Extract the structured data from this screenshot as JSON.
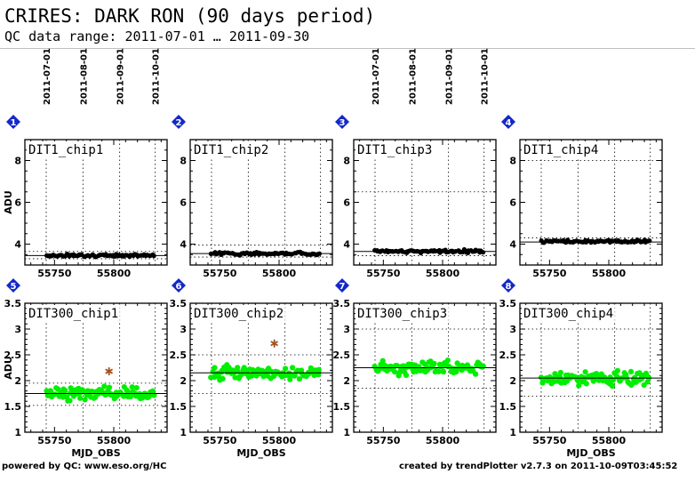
{
  "header": {
    "title": "CRIRES: DARK RON (90 days period)",
    "subtitle": "QC data range: 2011-07-01 … 2011-09-30"
  },
  "footer": {
    "left": "powered by QC: www.eso.org/HC",
    "right": "created by trendPlotter v2.7.3 on 2011-10-09T03:45:52"
  },
  "colors": {
    "badge": "#1428c8",
    "row1_points": "#000000",
    "row2_points": "#00ee00",
    "outlier": "#a0501e"
  },
  "chart_data": [
    {
      "type": "scatter",
      "panel": "1",
      "title": "DIT1_chip1",
      "ylabel": "ADU",
      "xlabel": "",
      "xlim": [
        55725,
        55845
      ],
      "ylim": [
        3.0,
        9.0
      ],
      "yticks": [
        4,
        6,
        8
      ],
      "yticklabels": [
        "4",
        "6",
        "8"
      ],
      "xticks": [
        55750,
        55800
      ],
      "xticklabels": [
        "55750",
        "55800"
      ],
      "date_ticks": [
        "2011-07-01",
        "2011-08-01",
        "2011-09-01",
        "2011-10-01"
      ],
      "date_tick_mjd": [
        55743,
        55774,
        55805,
        55835
      ],
      "x_range": [
        55743,
        55834
      ],
      "y_center": 3.46,
      "y_spread": 0.05,
      "ref_lines": [
        3.45
      ],
      "dotted_lines": [
        3.65,
        3.3
      ],
      "outliers": []
    },
    {
      "type": "scatter",
      "panel": "2",
      "title": "DIT1_chip2",
      "ylabel": "",
      "xlabel": "",
      "xlim": [
        55725,
        55845
      ],
      "ylim": [
        3.0,
        9.0
      ],
      "yticks": [
        4,
        6,
        8
      ],
      "yticklabels": [
        "4",
        "6",
        "8"
      ],
      "xticks": [
        55750,
        55800
      ],
      "xticklabels": [
        "55750",
        "55800"
      ],
      "date_ticks": [],
      "date_tick_mjd": [],
      "x_range": [
        55743,
        55834
      ],
      "y_center": 3.55,
      "y_spread": 0.05,
      "ref_lines": [
        3.55
      ],
      "dotted_lines": [
        3.95,
        3.38
      ],
      "outliers": []
    },
    {
      "type": "scatter",
      "panel": "3",
      "title": "DIT1_chip3",
      "ylabel": "",
      "xlabel": "",
      "xlim": [
        55725,
        55845
      ],
      "ylim": [
        3.0,
        9.0
      ],
      "yticks": [
        4,
        6,
        8
      ],
      "yticklabels": [
        "4",
        "6",
        "8"
      ],
      "xticks": [
        55750,
        55800
      ],
      "xticklabels": [
        "55750",
        "55800"
      ],
      "date_ticks": [
        "2011-07-01",
        "2011-08-01",
        "2011-09-01",
        "2011-10-01"
      ],
      "date_tick_mjd": [
        55743,
        55774,
        55805,
        55835
      ],
      "x_range": [
        55743,
        55834
      ],
      "y_center": 3.66,
      "y_spread": 0.05,
      "ref_lines": [
        3.65
      ],
      "dotted_lines": [
        6.5,
        3.45
      ],
      "outliers": []
    },
    {
      "type": "scatter",
      "panel": "4",
      "title": "DIT1_chip4",
      "ylabel": "",
      "xlabel": "",
      "xlim": [
        55725,
        55845
      ],
      "ylim": [
        3.0,
        9.0
      ],
      "yticks": [
        4,
        6,
        8
      ],
      "yticklabels": [
        "4",
        "6",
        "8"
      ],
      "xticks": [
        55750,
        55800
      ],
      "xticklabels": [
        "55750",
        "55800"
      ],
      "date_ticks": [],
      "date_tick_mjd": [],
      "x_range": [
        55743,
        55834
      ],
      "y_center": 4.13,
      "y_spread": 0.05,
      "ref_lines": [
        4.1
      ],
      "dotted_lines": [
        8.0,
        4.3
      ],
      "outliers": []
    },
    {
      "type": "scatter",
      "panel": "5",
      "title": "DIT300_chip1",
      "ylabel": "ADU",
      "xlabel": "MJD_OBS",
      "xlim": [
        55725,
        55845
      ],
      "ylim": [
        1.0,
        3.5
      ],
      "yticks": [
        1,
        1.5,
        2,
        2.5,
        3,
        3.5
      ],
      "yticklabels": [
        "1",
        "1.5",
        "2",
        "2.5",
        "3",
        "3.5"
      ],
      "xticks": [
        55750,
        55800
      ],
      "xticklabels": [
        "55750",
        "55800"
      ],
      "date_ticks": [],
      "date_tick_mjd": [],
      "x_range": [
        55743,
        55834
      ],
      "y_center": 1.75,
      "y_spread": 0.09,
      "ref_lines": [
        1.75
      ],
      "dotted_lines": [
        1.95,
        1.52
      ],
      "outliers": [
        [
          55796,
          2.18
        ]
      ]
    },
    {
      "type": "scatter",
      "panel": "6",
      "title": "DIT300_chip2",
      "ylabel": "",
      "xlabel": "MJD_OBS",
      "xlim": [
        55725,
        55845
      ],
      "ylim": [
        1.0,
        3.5
      ],
      "yticks": [
        1,
        1.5,
        2,
        2.5,
        3,
        3.5
      ],
      "yticklabels": [
        "1",
        "1.5",
        "2",
        "2.5",
        "3",
        "3.5"
      ],
      "xticks": [
        55750,
        55800
      ],
      "xticklabels": [
        "55750",
        "55800"
      ],
      "date_ticks": [],
      "date_tick_mjd": [],
      "x_range": [
        55743,
        55834
      ],
      "y_center": 2.15,
      "y_spread": 0.1,
      "ref_lines": [
        2.15
      ],
      "dotted_lines": [
        2.5,
        1.75
      ],
      "outliers": [
        [
          55796,
          2.72
        ]
      ]
    },
    {
      "type": "scatter",
      "panel": "7",
      "title": "DIT300_chip3",
      "ylabel": "",
      "xlabel": "",
      "xlim": [
        55725,
        55845
      ],
      "ylim": [
        1.0,
        3.5
      ],
      "yticks": [
        1,
        1.5,
        2,
        2.5,
        3,
        3.5
      ],
      "yticklabels": [
        "1",
        "1.5",
        "2",
        "2.5",
        "3",
        "3.5"
      ],
      "xticks": [
        55750,
        55800
      ],
      "xticklabels": [
        "55750",
        "55800"
      ],
      "date_ticks": [],
      "date_tick_mjd": [],
      "x_range": [
        55743,
        55834
      ],
      "y_center": 2.25,
      "y_spread": 0.1,
      "ref_lines": [
        2.25
      ],
      "dotted_lines": [
        3.0,
        1.85
      ],
      "outliers": []
    },
    {
      "type": "scatter",
      "panel": "8",
      "title": "DIT300_chip4",
      "ylabel": "",
      "xlabel": "MJD_OBS",
      "xlim": [
        55725,
        55845
      ],
      "ylim": [
        1.0,
        3.5
      ],
      "yticks": [
        1,
        1.5,
        2,
        2.5,
        3,
        3.5
      ],
      "yticklabels": [
        "1",
        "1.5",
        "2",
        "2.5",
        "3",
        "3.5"
      ],
      "xticks": [
        55750,
        55800
      ],
      "xticklabels": [
        "55750",
        "55800"
      ],
      "date_ticks": [],
      "date_tick_mjd": [],
      "x_range": [
        55743,
        55834
      ],
      "y_center": 2.05,
      "y_spread": 0.1,
      "ref_lines": [
        2.05
      ],
      "dotted_lines": [
        3.0,
        1.7
      ],
      "outliers": []
    }
  ]
}
